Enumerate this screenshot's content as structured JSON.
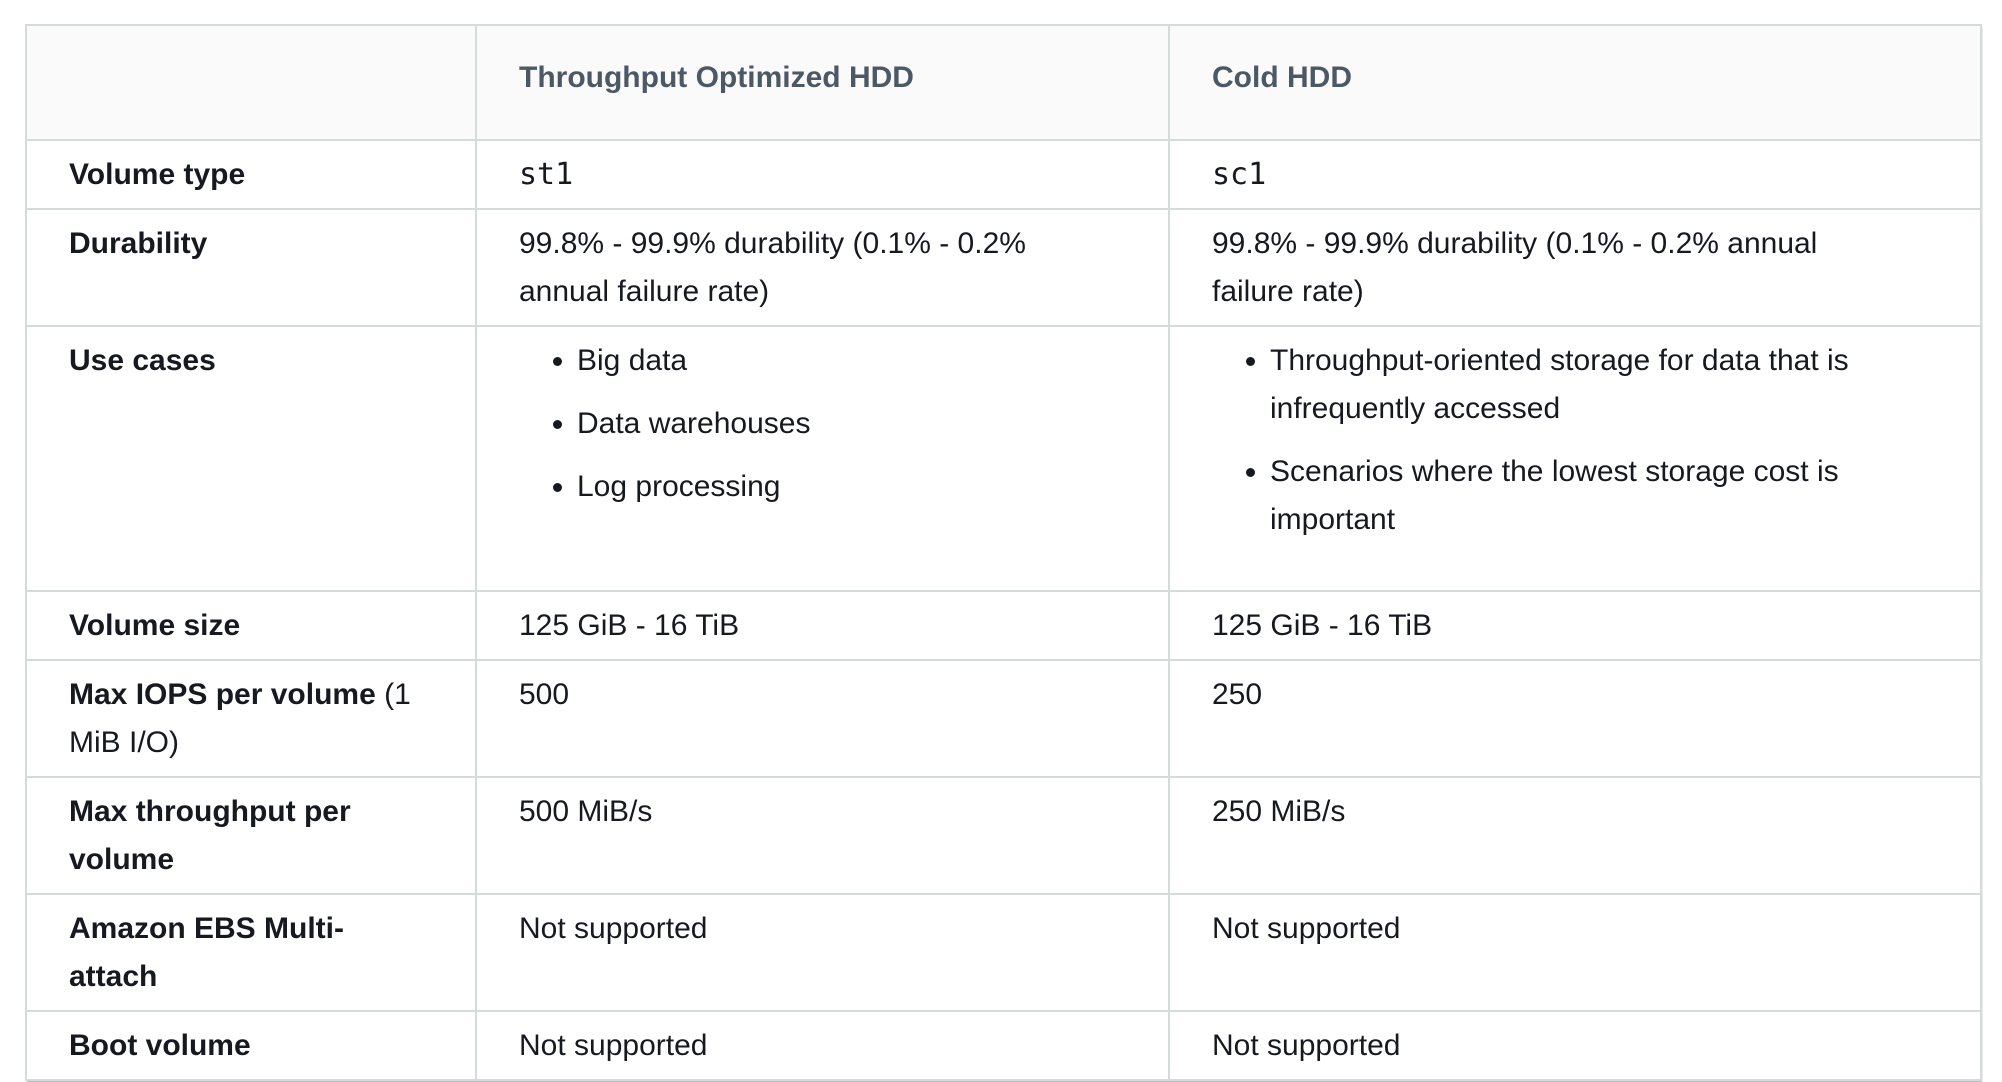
{
  "table": {
    "columns": [
      {
        "label": ""
      },
      {
        "label": "Throughput Optimized HDD"
      },
      {
        "label": "Cold HDD"
      }
    ],
    "rows": {
      "volume_type": {
        "label": "Volume type",
        "st1": "st1",
        "sc1": "sc1"
      },
      "durability": {
        "label": "Durability",
        "st1": "99.8% - 99.9% durability (0.1% - 0.2% annual failure rate)",
        "sc1": "99.8% - 99.9% durability (0.1% - 0.2% annual failure rate)"
      },
      "use_cases": {
        "label": "Use cases",
        "st1": [
          "Big data",
          "Data warehouses",
          "Log processing"
        ],
        "sc1": [
          "Throughput-oriented storage for data that is infrequently accessed",
          "Scenarios where the lowest storage cost is important"
        ]
      },
      "volume_size": {
        "label": "Volume size",
        "st1": "125 GiB - 16 TiB",
        "sc1": "125 GiB - 16 TiB"
      },
      "max_iops": {
        "label_bold": "Max IOPS per volume",
        "label_suffix": " (1 MiB I/O)",
        "st1": "500",
        "sc1": "250"
      },
      "max_throughput": {
        "label": "Max throughput per volume",
        "st1": "500 MiB/s",
        "sc1": "250 MiB/s"
      },
      "multi_attach": {
        "label": "Amazon EBS Multi-attach",
        "st1": "Not supported",
        "sc1": "Not supported"
      },
      "boot_volume": {
        "label": "Boot volume",
        "st1": "Not supported",
        "sc1": "Not supported"
      }
    }
  }
}
